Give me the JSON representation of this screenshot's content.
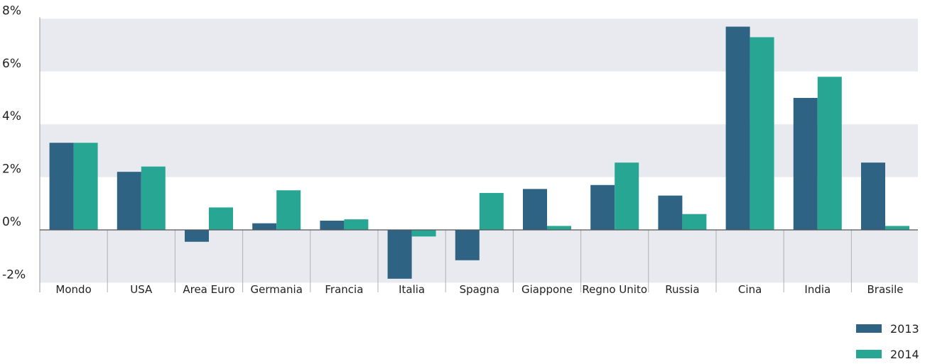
{
  "chart_data": {
    "type": "bar",
    "title": "",
    "xlabel": "",
    "ylabel": "",
    "ylim": [
      -2,
      8
    ],
    "yticks": [
      "-2%",
      "0%",
      "2%",
      "4%",
      "6%",
      "8%"
    ],
    "ytick_values": [
      -2,
      0,
      2,
      4,
      6,
      8
    ],
    "categories": [
      "Mondo",
      "USA",
      "Area Euro",
      "Germania",
      "Francia",
      "Italia",
      "Spagna",
      "Giappone",
      "Regno Unito",
      "Russia",
      "Cina",
      "India",
      "Brasile"
    ],
    "series": [
      {
        "name": "2013",
        "color": "#2e6384",
        "values": [
          3.3,
          2.2,
          -0.45,
          0.25,
          0.35,
          -1.85,
          -1.15,
          1.55,
          1.7,
          1.3,
          7.7,
          5.0,
          2.55
        ]
      },
      {
        "name": "2014",
        "color": "#27a793",
        "values": [
          3.3,
          2.4,
          0.85,
          1.5,
          0.4,
          -0.25,
          1.4,
          0.15,
          2.55,
          0.6,
          7.3,
          5.8,
          0.15
        ]
      }
    ],
    "grid": "alternating horizontal bands",
    "band_color": "#e8eaf0",
    "legend_position": "bottom-right"
  }
}
